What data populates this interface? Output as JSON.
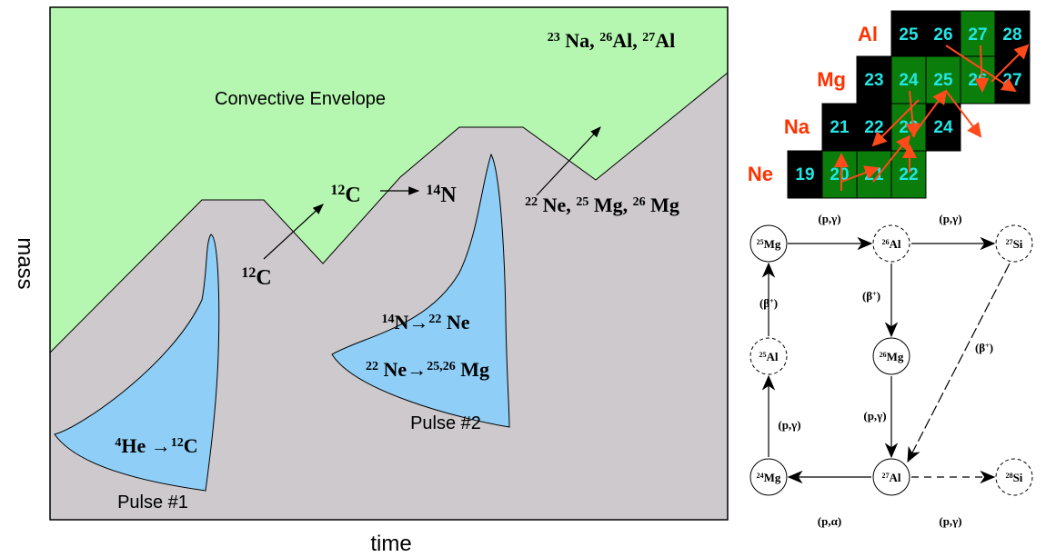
{
  "diagram": {
    "labels": [
      [
        {
          "text": "Convective Envelope"
        }
      ],
      [
        {
          "sup": "23"
        },
        {
          "text": " Na, "
        },
        {
          "sup": "26"
        },
        {
          "text": "Al, "
        },
        {
          "sup": "27"
        },
        {
          "text": "Al"
        }
      ],
      [
        {
          "sup": "12"
        },
        {
          "text": "C"
        }
      ],
      [
        {
          "sup": "14"
        },
        {
          "text": "N"
        }
      ],
      [
        {
          "sup": "12"
        },
        {
          "text": "C"
        }
      ],
      [
        {
          "sup": "22"
        },
        {
          "text": " Ne, "
        },
        {
          "sup": "25"
        },
        {
          "text": " Mg, "
        },
        {
          "sup": "26"
        },
        {
          "text": " Mg"
        }
      ],
      [
        {
          "sup": "14"
        },
        {
          "text": "N"
        },
        {
          "text": "→"
        },
        {
          "sup": "22"
        },
        {
          "text": " Ne"
        }
      ],
      [
        {
          "sup": "22"
        },
        {
          "text": " Ne"
        },
        {
          "text": "→"
        },
        {
          "sup": "25,26"
        },
        {
          "text": " Mg"
        }
      ],
      [
        {
          "sup": "4"
        },
        {
          "text": "He "
        },
        {
          "text": "→"
        },
        {
          "sup": "12"
        },
        {
          "text": "C"
        }
      ],
      [
        {
          "text": "Pulse #2"
        }
      ],
      [
        {
          "text": "Pulse #1"
        }
      ]
    ],
    "y_axis_label": "mass",
    "x_axis_label": "time"
  },
  "nuclide_chart": {
    "rows": [
      {
        "element": "Al",
        "masses": [
          "25",
          "26",
          "27",
          "28"
        ]
      },
      {
        "element": "Mg",
        "masses": [
          "23",
          "24",
          "25",
          "26",
          "27"
        ]
      },
      {
        "element": "Na",
        "masses": [
          "21",
          "22",
          "23",
          "24"
        ]
      },
      {
        "element": "Ne",
        "masses": [
          "19",
          "20",
          "21",
          "22"
        ]
      }
    ]
  },
  "network": {
    "nodes": [
      [
        {
          "sup": "25"
        },
        {
          "text": "Mg"
        }
      ],
      [
        {
          "sup": "26"
        },
        {
          "text": "Al"
        }
      ],
      [
        {
          "sup": "27"
        },
        {
          "text": "Si"
        }
      ],
      [
        {
          "sup": "25"
        },
        {
          "text": "Al"
        }
      ],
      [
        {
          "sup": "26"
        },
        {
          "text": "Mg"
        }
      ],
      [
        {
          "sup": "24"
        },
        {
          "text": "Mg"
        }
      ],
      [
        {
          "sup": "27"
        },
        {
          "text": "Al"
        }
      ],
      [
        {
          "sup": "28"
        },
        {
          "text": "Si"
        }
      ]
    ],
    "edge_labels": [
      [
        {
          "text": "(p,γ)"
        }
      ],
      [
        {
          "text": "(p,γ)"
        }
      ],
      [
        {
          "text": "(β"
        },
        {
          "sup": "+"
        },
        {
          "text": ")"
        }
      ],
      [
        {
          "text": "(β"
        },
        {
          "sup": "+"
        },
        {
          "text": ")"
        }
      ],
      [
        {
          "text": "(β"
        },
        {
          "sup": "+"
        },
        {
          "text": ")"
        }
      ],
      [
        {
          "text": "(p,γ)"
        }
      ],
      [
        {
          "text": "(p,γ)"
        }
      ],
      [
        {
          "text": "(p,α)"
        }
      ],
      [
        {
          "text": "(p,γ)"
        }
      ]
    ]
  }
}
